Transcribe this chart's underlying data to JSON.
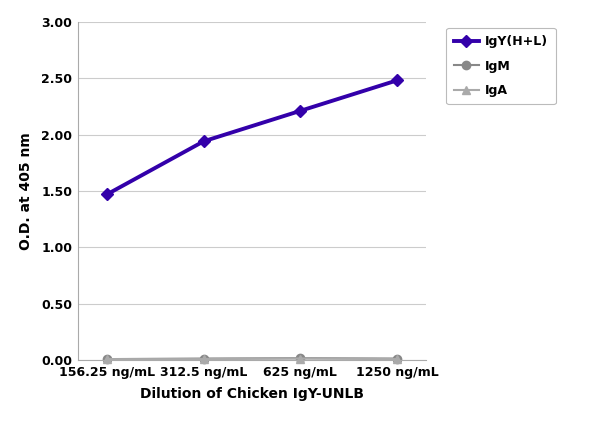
{
  "x_labels": [
    "156.25 ng/mL",
    "312.5 ng/mL",
    "625 ng/mL",
    "1250 ng/mL"
  ],
  "x_positions": [
    0,
    1,
    2,
    3
  ],
  "series": [
    {
      "name": "IgY(H+L)",
      "values": [
        1.47,
        1.94,
        2.21,
        2.48
      ],
      "color": "#3300AA",
      "linewidth": 2.8,
      "marker": "D",
      "markersize": 6,
      "zorder": 3
    },
    {
      "name": "IgM",
      "values": [
        0.01,
        0.015,
        0.018,
        0.015
      ],
      "color": "#888888",
      "linewidth": 1.5,
      "marker": "o",
      "markersize": 6,
      "zorder": 2
    },
    {
      "name": "IgA",
      "values": [
        0.01,
        0.01,
        0.015,
        0.01
      ],
      "color": "#aaaaaa",
      "linewidth": 1.5,
      "marker": "^",
      "markersize": 6,
      "zorder": 2
    }
  ],
  "xlabel": "Dilution of Chicken IgY-UNLB",
  "ylabel": "O.D. at 405 nm",
  "ylim": [
    0.0,
    3.0
  ],
  "yticks": [
    0.0,
    0.5,
    1.0,
    1.5,
    2.0,
    2.5,
    3.0
  ],
  "ytick_labels": [
    "0.00",
    "0.50",
    "1.00",
    "1.50",
    "2.00",
    "2.50",
    "3.00"
  ],
  "background_color": "#ffffff",
  "grid_color": "#cccccc",
  "legend_fontsize": 9,
  "axis_label_fontsize": 10,
  "tick_fontsize": 9,
  "figure_width": 6.0,
  "figure_height": 4.34
}
